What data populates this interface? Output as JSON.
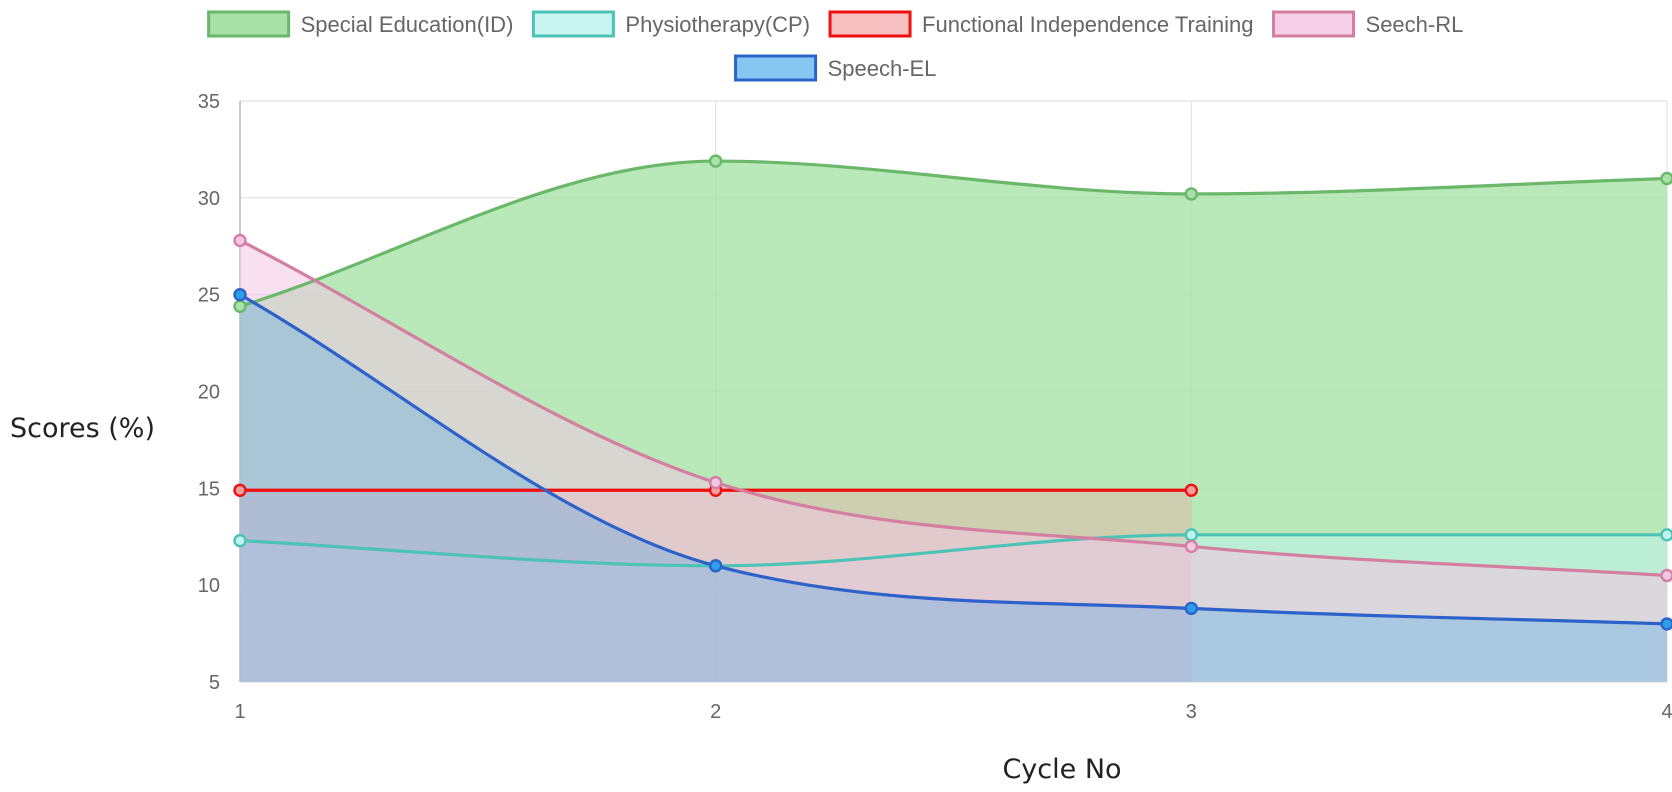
{
  "chart_data": {
    "type": "area",
    "xlabel": "Cycle No",
    "ylabel": "Scores (%)",
    "ylim": [
      5,
      35
    ],
    "yticks": [
      "5",
      "10",
      "15",
      "20",
      "25",
      "30",
      "35"
    ],
    "categories": [
      "1",
      "2",
      "3",
      "4"
    ],
    "grid": true,
    "legend_position": "top",
    "series": [
      {
        "name": "Special Education(ID)",
        "values": [
          24.4,
          31.9,
          30.2,
          31.0
        ],
        "line_color": "#6bb86b",
        "fill_color": "#a8e2a8",
        "fill_opacity": 0.8,
        "smooth": true
      },
      {
        "name": "Physiotherapy(CP)",
        "values": [
          12.3,
          11.0,
          12.6,
          12.6
        ],
        "line_color": "#4cc3b4",
        "fill_color": "#bff2ec",
        "fill_opacity": 0.55,
        "smooth": true
      },
      {
        "name": "Functional Independence Training",
        "values": [
          14.9,
          14.9,
          14.9,
          null
        ],
        "line_color": "#ee1111",
        "fill_color": "#f4a0a0",
        "fill_opacity": 0.35,
        "smooth": false
      },
      {
        "name": "Seech-RL",
        "values": [
          27.8,
          15.3,
          12.0,
          10.5
        ],
        "line_color": "#d27fa2",
        "fill_color": "#f2c7e3",
        "fill_opacity": 0.55,
        "smooth": true
      },
      {
        "name": "Speech-EL",
        "values": [
          25.0,
          11.0,
          8.8,
          8.0
        ],
        "line_color": "#2c62c9",
        "fill_color": "#2f9ee8",
        "fill_opacity": 0.28,
        "smooth": true
      }
    ]
  }
}
